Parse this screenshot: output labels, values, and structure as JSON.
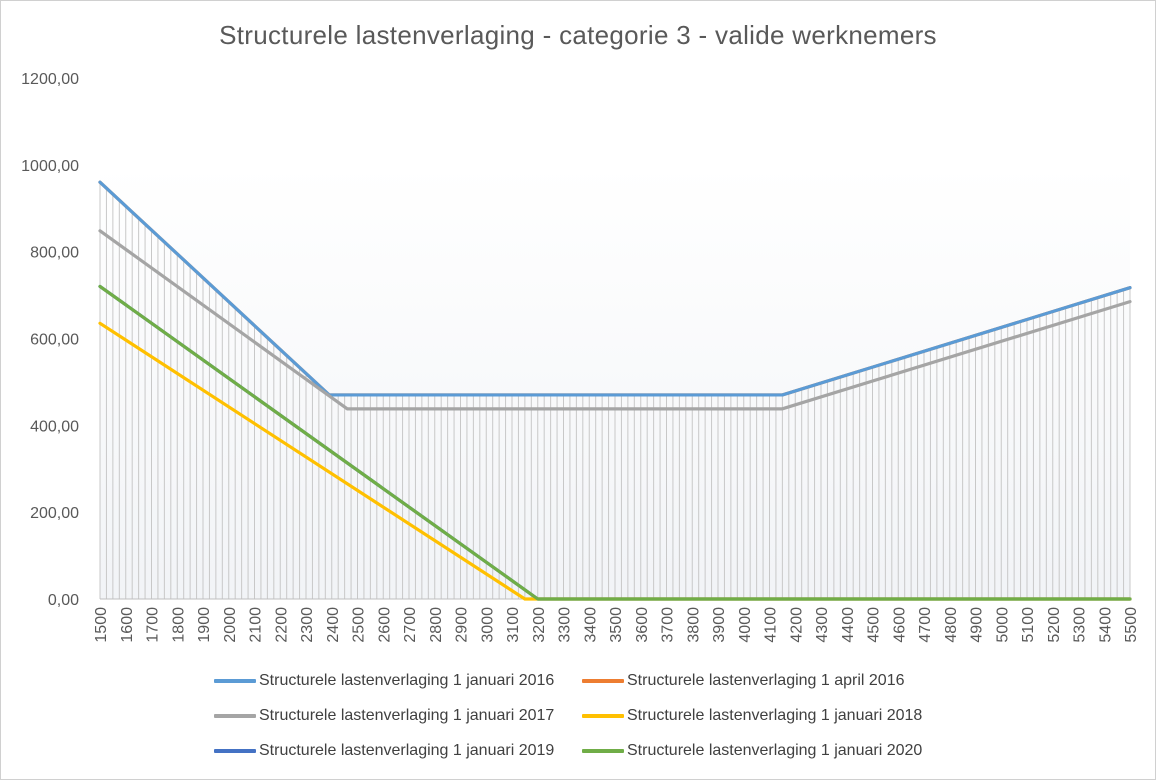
{
  "chart_data": {
    "type": "line",
    "title": "Structurele  lastenverlaging  - categorie 3 - valide werknemers",
    "xlabel": "",
    "ylabel": "",
    "x_range": [
      1500,
      5500
    ],
    "x_step": 25,
    "x_tick_labels": [
      "1500",
      "1600",
      "1700",
      "1800",
      "1900",
      "2000",
      "2100",
      "2200",
      "2300",
      "2400",
      "2500",
      "2600",
      "2700",
      "2800",
      "2900",
      "3000",
      "3100",
      "3200",
      "3300",
      "3400",
      "3500",
      "3600",
      "3700",
      "3800",
      "3900",
      "4000",
      "4100",
      "4200",
      "4300",
      "4400",
      "4500",
      "4600",
      "4700",
      "4800",
      "4900",
      "5000",
      "5100",
      "5200",
      "5300",
      "5400",
      "5500"
    ],
    "ylim": [
      0,
      1200
    ],
    "y_tick_values": [
      0,
      200,
      400,
      600,
      800,
      1000,
      1200
    ],
    "y_tick_labels": [
      "0,00",
      "200,00",
      "400,00",
      "600,00",
      "800,00",
      "1000,00",
      "1200,00"
    ],
    "grid": false,
    "drop_lines": true,
    "legend_position": "bottom",
    "series": [
      {
        "name": "Structurele lastenverlaging 1 januari 2016",
        "color": "#5b9bd5",
        "points": [
          [
            1500,
            960
          ],
          [
            2390,
            470
          ],
          [
            4150,
            470
          ],
          [
            5500,
            717
          ]
        ]
      },
      {
        "name": "Structurele lastenverlaging 1 april 2016",
        "color": "#ed7d31",
        "points": [
          [
            1500,
            960
          ],
          [
            2390,
            470
          ],
          [
            4150,
            470
          ],
          [
            5500,
            717
          ]
        ]
      },
      {
        "name": "Structurele lastenverlaging 1 januari 2017",
        "color": "#a5a5a5",
        "points": [
          [
            1500,
            848
          ],
          [
            2460,
            438
          ],
          [
            4150,
            438
          ],
          [
            5500,
            685
          ]
        ]
      },
      {
        "name": "Structurele lastenverlaging 1 januari 2018",
        "color": "#ffc000",
        "points": [
          [
            1500,
            635
          ],
          [
            3150,
            0
          ],
          [
            5500,
            0
          ]
        ]
      },
      {
        "name": "Structurele lastenverlaging 1 januari 2019",
        "color": "#4472c4",
        "points": [
          [
            1500,
            720
          ],
          [
            3200,
            0
          ],
          [
            5500,
            0
          ]
        ]
      },
      {
        "name": "Structurele lastenverlaging 1 januari 2020",
        "color": "#70ad47",
        "points": [
          [
            1500,
            720
          ],
          [
            3200,
            0
          ],
          [
            5500,
            0
          ]
        ]
      }
    ]
  }
}
